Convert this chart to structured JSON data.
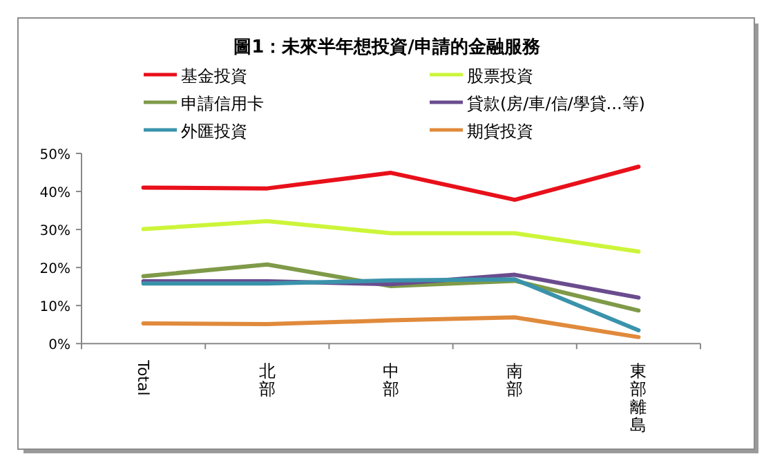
{
  "chart_data": {
    "type": "line",
    "title": "圖1：未來半年想投資/申請的金融服務",
    "categories": [
      "Total",
      "北部",
      "中部",
      "南部",
      "東部離島"
    ],
    "series": [
      {
        "name": "基金投資",
        "color": "#e8101a",
        "values": [
          41.0,
          40.8,
          44.9,
          37.8,
          46.5
        ]
      },
      {
        "name": "股票投資",
        "color": "#ccf53a",
        "values": [
          30.1,
          32.2,
          29.0,
          29.0,
          24.2
        ]
      },
      {
        "name": "申請信用卡",
        "color": "#7f9a48",
        "values": [
          17.7,
          20.8,
          15.1,
          16.5,
          8.7
        ]
      },
      {
        "name": "貸款(房/車/信/學貸...等)",
        "color": "#6a4c8e",
        "values": [
          16.4,
          16.4,
          15.6,
          18.1,
          12.1
        ]
      },
      {
        "name": "外匯投資",
        "color": "#3a93ab",
        "values": [
          15.8,
          15.8,
          16.6,
          16.9,
          3.5
        ]
      },
      {
        "name": "期貨投資",
        "color": "#e08a3c",
        "values": [
          5.3,
          5.1,
          6.1,
          6.9,
          1.7
        ]
      }
    ],
    "ylim": [
      0,
      50
    ],
    "yticks": [
      {
        "value": 0,
        "label": "0%"
      },
      {
        "value": 10,
        "label": "10%"
      },
      {
        "value": 20,
        "label": "20%"
      },
      {
        "value": 30,
        "label": "30%"
      },
      {
        "value": 40,
        "label": "40%"
      },
      {
        "value": 50,
        "label": "50%"
      }
    ],
    "grid": false,
    "legend": "top",
    "marker": "none",
    "line_style": "solid"
  }
}
